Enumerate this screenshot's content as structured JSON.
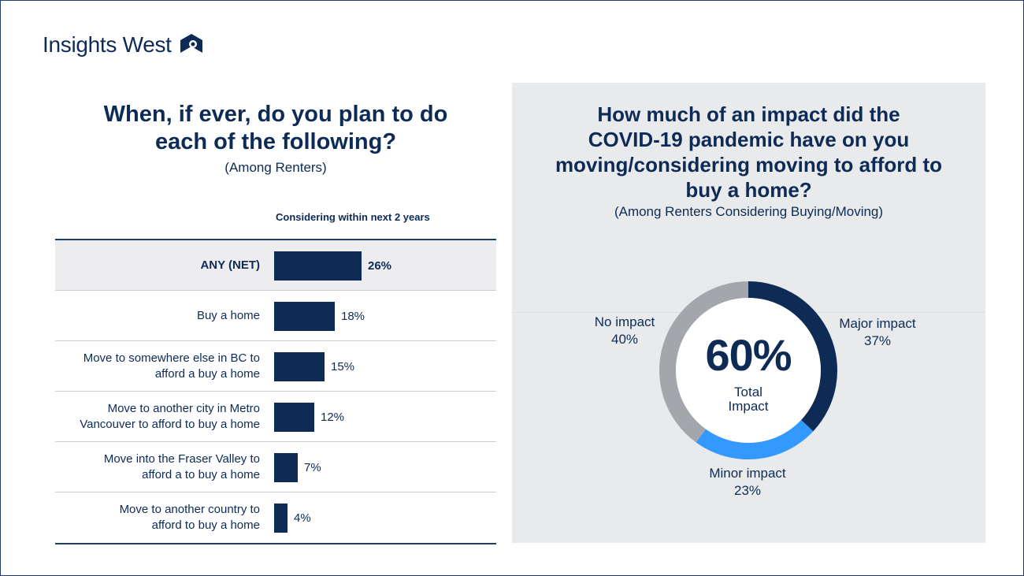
{
  "brand": {
    "name": "Insights West"
  },
  "colors": {
    "navy": "#0d2b55",
    "blue": "#3399ff",
    "gray": "#a3a6aa"
  },
  "left": {
    "title_line1": "When, if ever, do you plan to do",
    "title_line2": "each of the following?",
    "subtitle": "(Among Renters)",
    "column_header": "Considering within next 2 years"
  },
  "right": {
    "title_line1": "How much of an impact did the",
    "title_line2": "COVID-19 pandemic have on you",
    "title_line3": "moving/considering moving to afford to",
    "title_line4": "buy a home?",
    "subtitle": "(Among Renters Considering Buying/Moving)",
    "center_value": "60%",
    "center_label_line1": "Total",
    "center_label_line2": "Impact"
  },
  "chart_data": [
    {
      "type": "bar",
      "orientation": "horizontal",
      "categories": [
        [
          "ANY (NET)"
        ],
        [
          "Buy a home"
        ],
        [
          "Move to somewhere else in BC to",
          "afford a buy a home"
        ],
        [
          "Move to another city in Metro",
          "Vancouver to afford to buy a home"
        ],
        [
          "Move into the Fraser Valley to",
          "afford a to buy a home"
        ],
        [
          "Move to another country to",
          "afford to buy a home"
        ]
      ],
      "values": [
        26,
        18,
        15,
        12,
        7,
        4
      ],
      "value_labels": [
        "26%",
        "18%",
        "15%",
        "12%",
        "7%",
        "4%"
      ],
      "unit": "%",
      "xlim": [
        0,
        80
      ]
    },
    {
      "type": "pie",
      "donut": true,
      "slices": [
        {
          "label": "Major impact",
          "value": 37,
          "value_label": "37%",
          "color": "#0d2b55"
        },
        {
          "label": "Minor impact",
          "value": 23,
          "value_label": "23%",
          "color": "#3399ff"
        },
        {
          "label": "No impact",
          "value": 40,
          "value_label": "40%",
          "color": "#a3a6aa"
        }
      ]
    }
  ]
}
